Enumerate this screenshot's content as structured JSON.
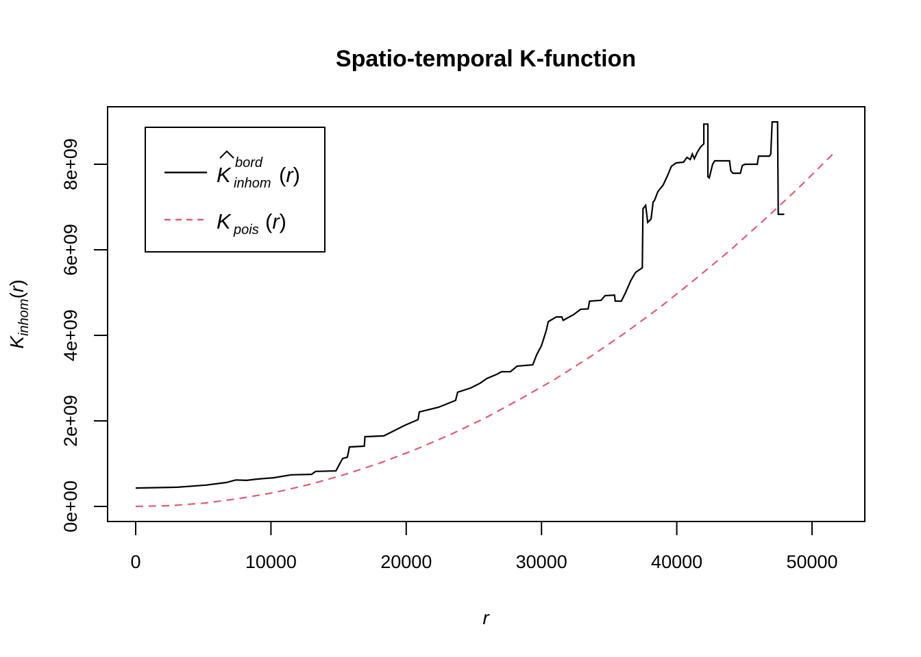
{
  "title": "Spatio-temporal K-function",
  "x_axis": {
    "label": "r",
    "ticks": [
      {
        "value": 0,
        "label": "0"
      },
      {
        "value": 10000,
        "label": "10000"
      },
      {
        "value": 20000,
        "label": "20000"
      },
      {
        "value": 30000,
        "label": "30000"
      },
      {
        "value": 40000,
        "label": "40000"
      },
      {
        "value": 50000,
        "label": "50000"
      }
    ]
  },
  "y_axis": {
    "label_parts": {
      "base": "K",
      "sub": "inhom",
      "open": "(",
      "var": "r",
      "close": ")"
    },
    "ticks": [
      {
        "value": 0,
        "label": "0e+00"
      },
      {
        "value": 2,
        "label": "2e+09"
      },
      {
        "value": 4,
        "label": "4e+09"
      },
      {
        "value": 6,
        "label": "6e+09"
      },
      {
        "value": 8,
        "label": "8e+09"
      }
    ]
  },
  "legend": {
    "entries": [
      {
        "hat": true,
        "base": "K",
        "sup": "bord",
        "sub": "inhom",
        "open": "(",
        "var": "r",
        "close": ")",
        "line_style": "solid",
        "color": "#000000"
      },
      {
        "hat": false,
        "base": "K",
        "sup": "",
        "sub": "pois",
        "open": "(",
        "var": "r",
        "close": ")",
        "line_style": "dashed",
        "color": "#E25A70"
      }
    ]
  },
  "colors": {
    "background": "#FFFFFF",
    "axis": "#000000",
    "inhom_curve": "#000000",
    "pois_curve": "#E25A70"
  },
  "chart_data": {
    "type": "line",
    "title": "Spatio-temporal K-function",
    "xlabel": "r",
    "ylabel": "K_inhom(r)",
    "xlim": [
      0,
      53900
    ],
    "ylim": [
      0,
      9340000000
    ],
    "x_ticks": [
      0,
      10000,
      20000,
      30000,
      40000,
      50000
    ],
    "y_ticks": [
      0,
      2000000000,
      4000000000,
      6000000000,
      8000000000
    ],
    "y_tick_labels": [
      "0e+00",
      "2e+09",
      "4e+09",
      "6e+09",
      "8e+09"
    ],
    "grid": false,
    "legend_position": "top-left",
    "value_unit": "K values in units of 1e9",
    "series": [
      {
        "name": "Khat_inhom_bord(r)",
        "style": "solid",
        "color": "#000000",
        "points": [
          [
            0,
            0.43
          ],
          [
            3100,
            0.45
          ],
          [
            5200,
            0.5
          ],
          [
            6700,
            0.56
          ],
          [
            7400,
            0.62
          ],
          [
            8200,
            0.61
          ],
          [
            9000,
            0.64
          ],
          [
            10200,
            0.67
          ],
          [
            11500,
            0.74
          ],
          [
            13000,
            0.75
          ],
          [
            13300,
            0.82
          ],
          [
            14800,
            0.83
          ],
          [
            15050,
            0.98
          ],
          [
            15300,
            1.12
          ],
          [
            15650,
            1.15
          ],
          [
            15800,
            1.39
          ],
          [
            16900,
            1.41
          ],
          [
            16950,
            1.63
          ],
          [
            18350,
            1.65
          ],
          [
            19850,
            1.89
          ],
          [
            20870,
            2.03
          ],
          [
            20970,
            2.21
          ],
          [
            22400,
            2.32
          ],
          [
            23650,
            2.48
          ],
          [
            23800,
            2.67
          ],
          [
            24770,
            2.77
          ],
          [
            25450,
            2.88
          ],
          [
            25950,
            2.99
          ],
          [
            26700,
            3.09
          ],
          [
            27050,
            3.15
          ],
          [
            27700,
            3.15
          ],
          [
            28200,
            3.28
          ],
          [
            29350,
            3.31
          ],
          [
            29650,
            3.55
          ],
          [
            30000,
            3.76
          ],
          [
            30350,
            4.11
          ],
          [
            30500,
            4.32
          ],
          [
            31100,
            4.43
          ],
          [
            31500,
            4.43
          ],
          [
            31600,
            4.35
          ],
          [
            32350,
            4.48
          ],
          [
            32900,
            4.61
          ],
          [
            33450,
            4.62
          ],
          [
            33550,
            4.8
          ],
          [
            34400,
            4.82
          ],
          [
            34700,
            4.93
          ],
          [
            35400,
            4.94
          ],
          [
            35450,
            4.8
          ],
          [
            35900,
            4.8
          ],
          [
            36200,
            4.99
          ],
          [
            36600,
            5.28
          ],
          [
            36950,
            5.47
          ],
          [
            37450,
            5.58
          ],
          [
            37500,
            6.96
          ],
          [
            37700,
            7.04
          ],
          [
            37850,
            6.64
          ],
          [
            38100,
            6.72
          ],
          [
            38250,
            7.12
          ],
          [
            38350,
            7.15
          ],
          [
            38600,
            7.36
          ],
          [
            39000,
            7.52
          ],
          [
            39350,
            7.76
          ],
          [
            39600,
            7.95
          ],
          [
            39950,
            8.03
          ],
          [
            40500,
            8.05
          ],
          [
            40750,
            8.16
          ],
          [
            41000,
            8.11
          ],
          [
            41150,
            8.24
          ],
          [
            41300,
            8.13
          ],
          [
            41500,
            8.27
          ],
          [
            41750,
            8.4
          ],
          [
            42000,
            8.48
          ],
          [
            42000,
            8.94
          ],
          [
            42300,
            8.94
          ],
          [
            42300,
            7.71
          ],
          [
            42400,
            7.68
          ],
          [
            42650,
            8.0
          ],
          [
            42800,
            8.08
          ],
          [
            43900,
            8.08
          ],
          [
            44000,
            7.84
          ],
          [
            44150,
            7.79
          ],
          [
            44700,
            7.79
          ],
          [
            44850,
            7.97
          ],
          [
            45050,
            8.0
          ],
          [
            45950,
            8.0
          ],
          [
            46050,
            8.19
          ],
          [
            46850,
            8.19
          ],
          [
            46950,
            8.24
          ],
          [
            47050,
            8.99
          ],
          [
            47450,
            8.99
          ],
          [
            47500,
            6.83
          ],
          [
            47950,
            6.83
          ]
        ]
      },
      {
        "name": "K_pois(r)",
        "style": "dashed",
        "color": "#E25A70",
        "note": "K_pois(r) ~ 3.1 * r^2",
        "points": [
          [
            0,
            0
          ],
          [
            2585,
            0.02
          ],
          [
            5170,
            0.08
          ],
          [
            7755,
            0.19
          ],
          [
            10340,
            0.33
          ],
          [
            12925,
            0.52
          ],
          [
            15510,
            0.75
          ],
          [
            18095,
            1.02
          ],
          [
            20680,
            1.33
          ],
          [
            23265,
            1.68
          ],
          [
            25850,
            2.07
          ],
          [
            28435,
            2.51
          ],
          [
            31020,
            2.98
          ],
          [
            33605,
            3.5
          ],
          [
            36190,
            4.06
          ],
          [
            38775,
            4.66
          ],
          [
            41360,
            5.31
          ],
          [
            43945,
            5.99
          ],
          [
            46530,
            6.72
          ],
          [
            49115,
            7.48
          ],
          [
            51700,
            8.29
          ]
        ]
      }
    ]
  }
}
